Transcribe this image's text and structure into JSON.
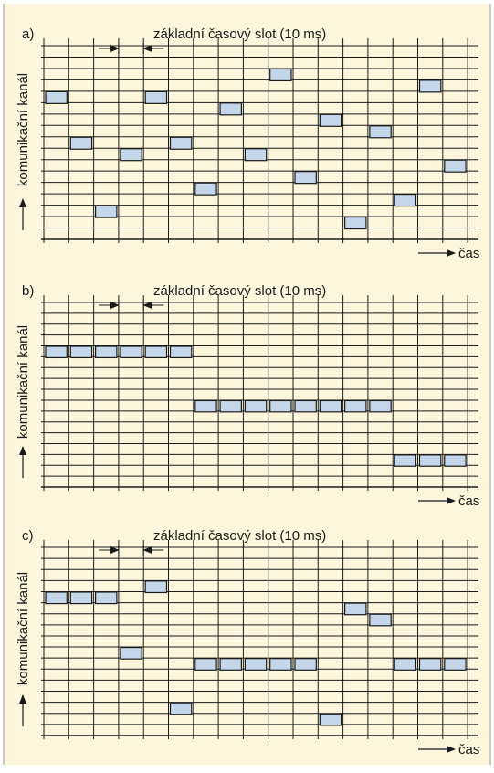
{
  "colors": {
    "background": "#fdf6dc",
    "grid": "#1a1a1a",
    "slot_fill": "#c4d6ea",
    "slot_stroke": "#1a1a1a"
  },
  "common": {
    "slot_caption": "základní časový slot (10 ms)",
    "y_axis_label": "komunikační kanál",
    "x_axis_label": "čas"
  },
  "panels": [
    {
      "letter": "a)",
      "time_slots": 17,
      "channels": 17,
      "occupied": [
        {
          "slot": 0,
          "channel": 12
        },
        {
          "slot": 1,
          "channel": 8
        },
        {
          "slot": 2,
          "channel": 2
        },
        {
          "slot": 3,
          "channel": 7
        },
        {
          "slot": 4,
          "channel": 12
        },
        {
          "slot": 5,
          "channel": 8
        },
        {
          "slot": 6,
          "channel": 4
        },
        {
          "slot": 7,
          "channel": 11
        },
        {
          "slot": 8,
          "channel": 7
        },
        {
          "slot": 9,
          "channel": 14
        },
        {
          "slot": 10,
          "channel": 5
        },
        {
          "slot": 11,
          "channel": 10
        },
        {
          "slot": 12,
          "channel": 1
        },
        {
          "slot": 13,
          "channel": 9
        },
        {
          "slot": 14,
          "channel": 3
        },
        {
          "slot": 15,
          "channel": 13
        },
        {
          "slot": 16,
          "channel": 6
        }
      ]
    },
    {
      "letter": "b)",
      "time_slots": 17,
      "channels": 17,
      "occupied": [
        {
          "slot": 0,
          "channel": 12
        },
        {
          "slot": 1,
          "channel": 12
        },
        {
          "slot": 2,
          "channel": 12
        },
        {
          "slot": 3,
          "channel": 12
        },
        {
          "slot": 4,
          "channel": 12
        },
        {
          "slot": 5,
          "channel": 12
        },
        {
          "slot": 6,
          "channel": 7
        },
        {
          "slot": 7,
          "channel": 7
        },
        {
          "slot": 8,
          "channel": 7
        },
        {
          "slot": 9,
          "channel": 7
        },
        {
          "slot": 10,
          "channel": 7
        },
        {
          "slot": 11,
          "channel": 7
        },
        {
          "slot": 12,
          "channel": 7
        },
        {
          "slot": 13,
          "channel": 7
        },
        {
          "slot": 14,
          "channel": 2
        },
        {
          "slot": 15,
          "channel": 2
        },
        {
          "slot": 16,
          "channel": 2
        }
      ]
    },
    {
      "letter": "c)",
      "time_slots": 17,
      "channels": 17,
      "occupied": [
        {
          "slot": 0,
          "channel": 12
        },
        {
          "slot": 1,
          "channel": 12
        },
        {
          "slot": 2,
          "channel": 12
        },
        {
          "slot": 3,
          "channel": 7
        },
        {
          "slot": 4,
          "channel": 13
        },
        {
          "slot": 5,
          "channel": 2
        },
        {
          "slot": 6,
          "channel": 6
        },
        {
          "slot": 7,
          "channel": 6
        },
        {
          "slot": 8,
          "channel": 6
        },
        {
          "slot": 9,
          "channel": 6
        },
        {
          "slot": 10,
          "channel": 6
        },
        {
          "slot": 11,
          "channel": 1
        },
        {
          "slot": 12,
          "channel": 11
        },
        {
          "slot": 13,
          "channel": 10
        },
        {
          "slot": 14,
          "channel": 6
        },
        {
          "slot": 15,
          "channel": 6
        },
        {
          "slot": 16,
          "channel": 6
        }
      ]
    }
  ]
}
